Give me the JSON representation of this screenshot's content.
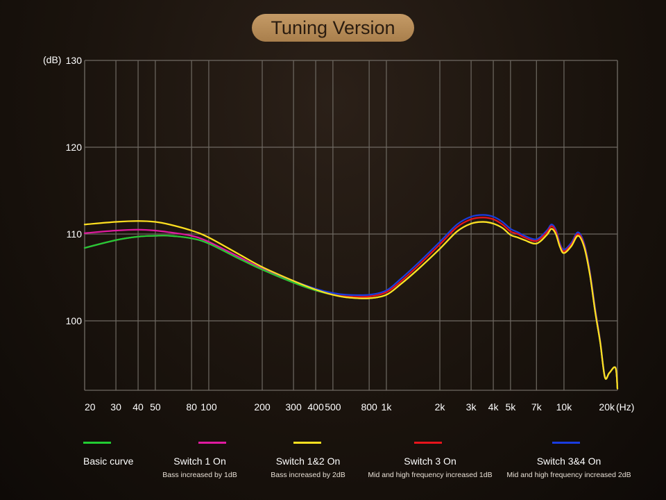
{
  "header": {
    "title": "Tuning Version"
  },
  "chart_data": {
    "type": "line",
    "xscale": "log",
    "xlabel_unit": "(Hz)",
    "ylabel_unit": "(dB)",
    "xlim": [
      20,
      20000
    ],
    "ylim": [
      92,
      130
    ],
    "grid": true,
    "x_ticks": [
      {
        "value": 20,
        "label": "20"
      },
      {
        "value": 30,
        "label": "30"
      },
      {
        "value": 40,
        "label": "40"
      },
      {
        "value": 50,
        "label": "50"
      },
      {
        "value": 80,
        "label": "80"
      },
      {
        "value": 100,
        "label": "100"
      },
      {
        "value": 200,
        "label": "200"
      },
      {
        "value": 300,
        "label": "300"
      },
      {
        "value": 400,
        "label": "400"
      },
      {
        "value": 500,
        "label": "500"
      },
      {
        "value": 800,
        "label": "800"
      },
      {
        "value": 1000,
        "label": "1k"
      },
      {
        "value": 2000,
        "label": "2k"
      },
      {
        "value": 3000,
        "label": "3k"
      },
      {
        "value": 4000,
        "label": "4k"
      },
      {
        "value": 5000,
        "label": "5k"
      },
      {
        "value": 7000,
        "label": "7k"
      },
      {
        "value": 10000,
        "label": "10k"
      },
      {
        "value": 20000,
        "label": "20k"
      }
    ],
    "y_ticks": [
      {
        "value": 100,
        "label": "100"
      },
      {
        "value": 110,
        "label": "110"
      },
      {
        "value": 120,
        "label": "120"
      },
      {
        "value": 130,
        "label": "130"
      }
    ],
    "legend_position": "bottom",
    "series": [
      {
        "name": "Basic curve",
        "description": "",
        "color": "#22cc33",
        "points": [
          [
            20,
            108.4
          ],
          [
            30,
            109.3
          ],
          [
            40,
            109.7
          ],
          [
            50,
            109.8
          ],
          [
            60,
            109.8
          ],
          [
            80,
            109.5
          ],
          [
            100,
            108.9
          ],
          [
            150,
            107.1
          ],
          [
            200,
            105.9
          ],
          [
            300,
            104.4
          ],
          [
            400,
            103.5
          ],
          [
            500,
            103.0
          ],
          [
            600,
            102.7
          ],
          [
            800,
            102.6
          ],
          [
            1000,
            103.0
          ],
          [
            1200,
            104.2
          ],
          [
            1500,
            105.9
          ],
          [
            2000,
            108.3
          ],
          [
            2500,
            110.3
          ],
          [
            3000,
            111.2
          ],
          [
            3500,
            111.4
          ],
          [
            4000,
            111.2
          ],
          [
            4500,
            110.7
          ],
          [
            5000,
            109.9
          ],
          [
            5500,
            109.6
          ],
          [
            6000,
            109.3
          ],
          [
            7000,
            108.9
          ],
          [
            8000,
            109.9
          ],
          [
            8500,
            110.6
          ],
          [
            9000,
            110.0
          ],
          [
            9500,
            108.5
          ],
          [
            10000,
            107.8
          ],
          [
            11000,
            108.6
          ],
          [
            12000,
            109.8
          ],
          [
            13000,
            108.5
          ],
          [
            14000,
            105.3
          ],
          [
            15000,
            101.0
          ],
          [
            16000,
            97.5
          ],
          [
            17000,
            93.5
          ],
          [
            18000,
            94.0
          ],
          [
            19500,
            94.6
          ],
          [
            20000,
            92.2
          ]
        ]
      },
      {
        "name": "Switch 1 On",
        "description": "Bass increased by 1dB",
        "color": "#e01aa0",
        "points": [
          [
            20,
            110.1
          ],
          [
            30,
            110.4
          ],
          [
            40,
            110.5
          ],
          [
            50,
            110.4
          ],
          [
            60,
            110.2
          ],
          [
            80,
            109.8
          ],
          [
            100,
            109.1
          ],
          [
            150,
            107.3
          ],
          [
            200,
            106.0
          ],
          [
            300,
            104.4
          ],
          [
            400,
            103.5
          ],
          [
            500,
            103.0
          ],
          [
            600,
            102.7
          ],
          [
            800,
            102.6
          ],
          [
            1000,
            103.0
          ],
          [
            1200,
            104.2
          ],
          [
            1500,
            105.9
          ],
          [
            2000,
            108.3
          ],
          [
            2500,
            110.3
          ],
          [
            3000,
            111.2
          ],
          [
            3500,
            111.4
          ],
          [
            4000,
            111.2
          ],
          [
            4500,
            110.7
          ],
          [
            5000,
            109.9
          ],
          [
            5500,
            109.6
          ],
          [
            6000,
            109.3
          ],
          [
            7000,
            108.9
          ],
          [
            8000,
            109.9
          ],
          [
            8500,
            110.6
          ],
          [
            9000,
            110.0
          ],
          [
            9500,
            108.5
          ],
          [
            10000,
            107.8
          ],
          [
            11000,
            108.6
          ],
          [
            12000,
            109.8
          ],
          [
            13000,
            108.5
          ],
          [
            14000,
            105.3
          ],
          [
            15000,
            101.0
          ],
          [
            16000,
            97.5
          ],
          [
            17000,
            93.5
          ],
          [
            18000,
            94.0
          ],
          [
            19500,
            94.6
          ],
          [
            20000,
            92.2
          ]
        ]
      },
      {
        "name": "Switch 1&2 On",
        "description": "Bass increased by 2dB",
        "color": "#ffe020",
        "points": [
          [
            20,
            111.1
          ],
          [
            30,
            111.4
          ],
          [
            40,
            111.5
          ],
          [
            50,
            111.4
          ],
          [
            60,
            111.1
          ],
          [
            80,
            110.4
          ],
          [
            100,
            109.6
          ],
          [
            150,
            107.6
          ],
          [
            200,
            106.2
          ],
          [
            300,
            104.6
          ],
          [
            400,
            103.6
          ],
          [
            500,
            103.0
          ],
          [
            600,
            102.7
          ],
          [
            800,
            102.6
          ],
          [
            1000,
            103.0
          ],
          [
            1200,
            104.2
          ],
          [
            1500,
            105.9
          ],
          [
            2000,
            108.3
          ],
          [
            2500,
            110.3
          ],
          [
            3000,
            111.2
          ],
          [
            3500,
            111.4
          ],
          [
            4000,
            111.2
          ],
          [
            4500,
            110.7
          ],
          [
            5000,
            109.9
          ],
          [
            5500,
            109.6
          ],
          [
            6000,
            109.3
          ],
          [
            7000,
            108.9
          ],
          [
            8000,
            109.9
          ],
          [
            8500,
            110.6
          ],
          [
            9000,
            110.0
          ],
          [
            9500,
            108.5
          ],
          [
            10000,
            107.8
          ],
          [
            11000,
            108.6
          ],
          [
            12000,
            109.8
          ],
          [
            13000,
            108.5
          ],
          [
            14000,
            105.3
          ],
          [
            15000,
            101.0
          ],
          [
            16000,
            97.5
          ],
          [
            17000,
            93.5
          ],
          [
            18000,
            94.0
          ],
          [
            19500,
            94.6
          ],
          [
            20000,
            92.2
          ]
        ]
      },
      {
        "name": "Switch 3 On",
        "description": "Mid and high frequency increased 1dB",
        "color": "#e8141c",
        "points": [
          [
            20,
            108.4
          ],
          [
            30,
            109.3
          ],
          [
            40,
            109.7
          ],
          [
            50,
            109.8
          ],
          [
            60,
            109.8
          ],
          [
            80,
            109.5
          ],
          [
            100,
            108.9
          ],
          [
            150,
            107.1
          ],
          [
            200,
            105.9
          ],
          [
            300,
            104.4
          ],
          [
            400,
            103.5
          ],
          [
            500,
            103.0
          ],
          [
            600,
            102.8
          ],
          [
            800,
            102.8
          ],
          [
            1000,
            103.3
          ],
          [
            1200,
            104.5
          ],
          [
            1500,
            106.3
          ],
          [
            2000,
            108.8
          ],
          [
            2500,
            110.8
          ],
          [
            3000,
            111.7
          ],
          [
            3500,
            111.9
          ],
          [
            4000,
            111.7
          ],
          [
            4500,
            111.1
          ],
          [
            5000,
            110.3
          ],
          [
            5500,
            110.0
          ],
          [
            6000,
            109.6
          ],
          [
            7000,
            109.2
          ],
          [
            8000,
            110.2
          ],
          [
            8500,
            110.9
          ],
          [
            9000,
            110.3
          ],
          [
            9500,
            108.7
          ],
          [
            10000,
            108.0
          ],
          [
            11000,
            108.8
          ],
          [
            12000,
            110.0
          ],
          [
            13000,
            108.7
          ],
          [
            14000,
            105.5
          ],
          [
            15000,
            101.2
          ],
          [
            16000,
            97.6
          ],
          [
            17000,
            93.5
          ],
          [
            18000,
            94.0
          ],
          [
            19500,
            94.6
          ],
          [
            20000,
            92.2
          ]
        ]
      },
      {
        "name": "Switch 3&4 On",
        "description": "Mid and high frequency increased 2dB",
        "color": "#1a3ce0",
        "points": [
          [
            20,
            108.4
          ],
          [
            30,
            109.3
          ],
          [
            40,
            109.7
          ],
          [
            50,
            109.8
          ],
          [
            60,
            109.8
          ],
          [
            80,
            109.5
          ],
          [
            100,
            108.9
          ],
          [
            150,
            107.2
          ],
          [
            200,
            106.0
          ],
          [
            300,
            104.6
          ],
          [
            400,
            103.7
          ],
          [
            500,
            103.2
          ],
          [
            600,
            103.0
          ],
          [
            800,
            103.0
          ],
          [
            1000,
            103.5
          ],
          [
            1200,
            104.8
          ],
          [
            1500,
            106.6
          ],
          [
            2000,
            109.1
          ],
          [
            2500,
            111.1
          ],
          [
            3000,
            112.0
          ],
          [
            3500,
            112.2
          ],
          [
            4000,
            112.0
          ],
          [
            4500,
            111.4
          ],
          [
            5000,
            110.6
          ],
          [
            5500,
            110.2
          ],
          [
            6000,
            109.8
          ],
          [
            7000,
            109.4
          ],
          [
            8000,
            110.4
          ],
          [
            8500,
            111.1
          ],
          [
            9000,
            110.5
          ],
          [
            9500,
            108.9
          ],
          [
            10000,
            108.2
          ],
          [
            11000,
            109.0
          ],
          [
            12000,
            110.2
          ],
          [
            13000,
            108.9
          ],
          [
            14000,
            105.7
          ],
          [
            15000,
            101.4
          ],
          [
            16000,
            97.7
          ],
          [
            17000,
            93.6
          ],
          [
            18000,
            94.0
          ],
          [
            19500,
            94.6
          ],
          [
            20000,
            92.2
          ]
        ]
      }
    ]
  }
}
